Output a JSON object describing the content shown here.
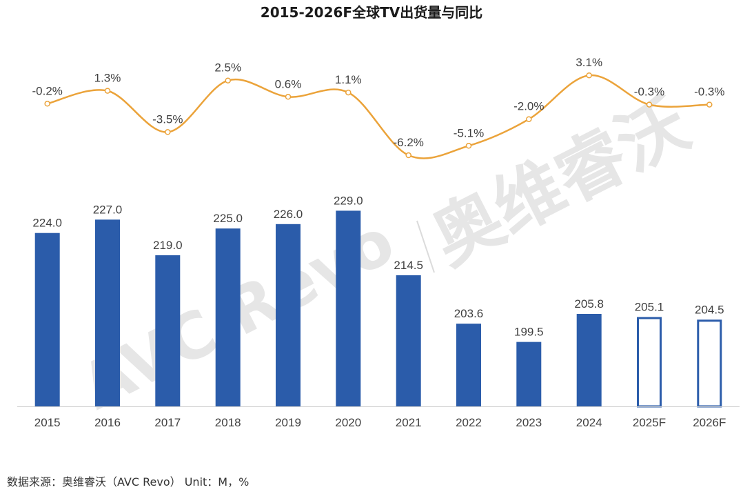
{
  "title": "2015-2026F全球TV出货量与同比",
  "source_note": "数据来源：奥维睿沃（AVC Revo） Unit：M，%",
  "watermark": {
    "latin": "AVC Revo",
    "cjk": "奥维睿沃",
    "color": "#b8b8b8"
  },
  "colors": {
    "bar_actual": "#2B5CAA",
    "bar_forecast_stroke": "#2B5CAA",
    "bar_forecast_fill": "#ffffff",
    "line": "#EBA33A",
    "axis": "#d0d0d0",
    "label": "#404040"
  },
  "chart_data": [
    {
      "type": "bar",
      "name": "全球TV出货量",
      "categories": [
        "2015",
        "2016",
        "2017",
        "2018",
        "2019",
        "2020",
        "2021",
        "2022",
        "2023",
        "2024",
        "2025F",
        "2026F"
      ],
      "values": [
        224.0,
        227.0,
        219.0,
        225.0,
        226.0,
        229.0,
        214.5,
        203.6,
        199.5,
        205.8,
        205.1,
        204.5
      ],
      "value_labels": [
        "224.0",
        "227.0",
        "219.0",
        "225.0",
        "226.0",
        "229.0",
        "214.5",
        "203.6",
        "199.5",
        "205.8",
        "205.1",
        "204.5"
      ],
      "forecast": [
        false,
        false,
        false,
        false,
        false,
        false,
        false,
        false,
        false,
        false,
        true,
        true
      ],
      "y_range": [
        185,
        230
      ]
    },
    {
      "type": "line",
      "name": "同比",
      "categories": [
        "2015",
        "2016",
        "2017",
        "2018",
        "2019",
        "2020",
        "2021",
        "2022",
        "2023",
        "2024",
        "2025F",
        "2026F"
      ],
      "values": [
        -0.2,
        1.3,
        -3.5,
        2.5,
        0.6,
        1.1,
        -6.2,
        -5.1,
        -2.0,
        3.1,
        -0.3,
        -0.3
      ],
      "value_labels": [
        "-0.2%",
        "1.3%",
        "-3.5%",
        "2.5%",
        "0.6%",
        "1.1%",
        "-6.2%",
        "-5.1%",
        "-2.0%",
        "3.1%",
        "-0.3%",
        "-0.3%"
      ],
      "unit": "%",
      "y_range": [
        -7,
        4
      ]
    }
  ]
}
